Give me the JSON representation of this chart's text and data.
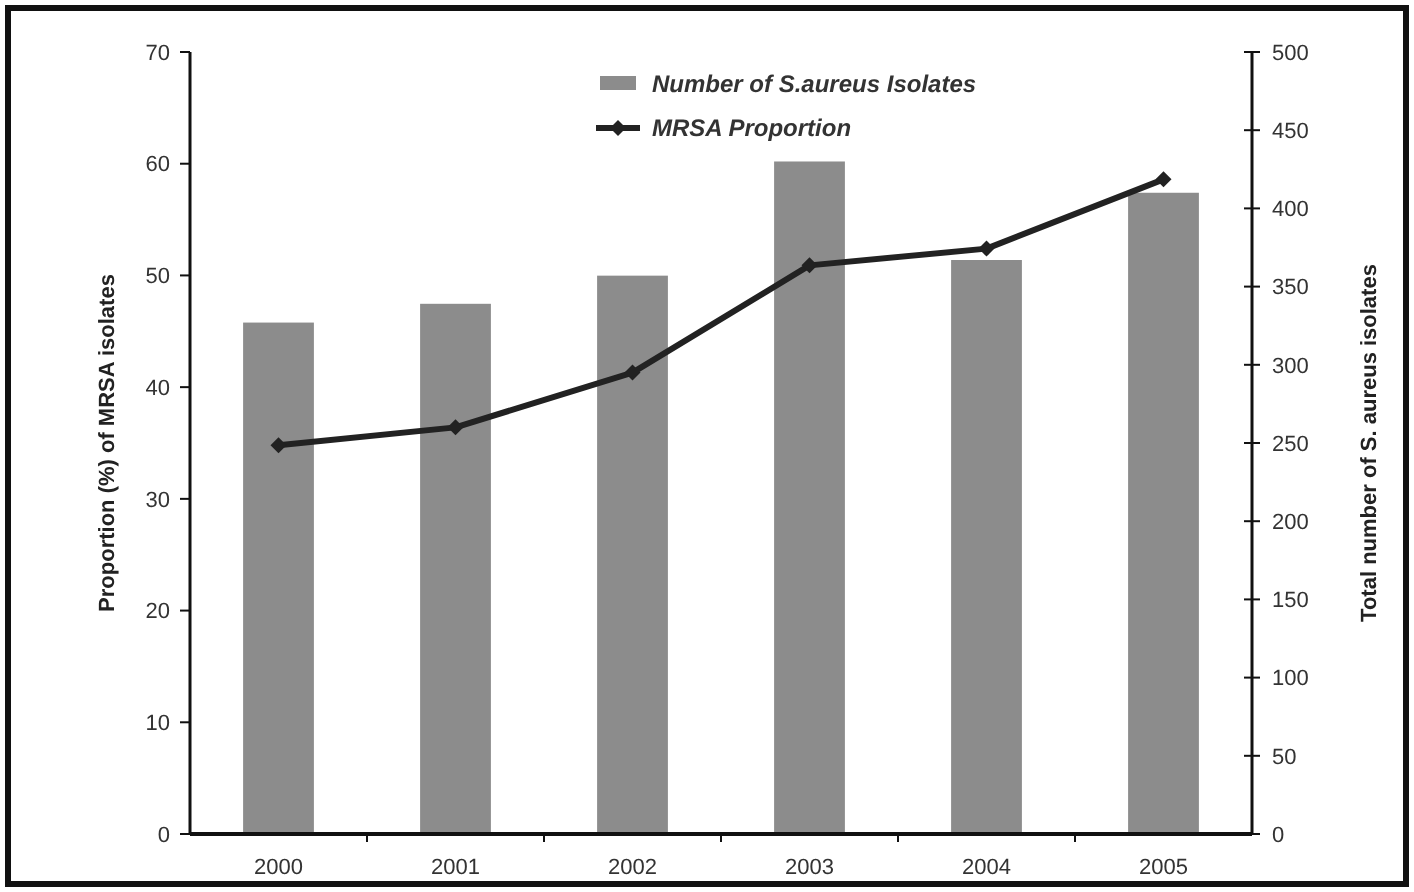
{
  "chart_data": {
    "type": "bar",
    "categories": [
      "2000",
      "2001",
      "2002",
      "2003",
      "2004",
      "2005"
    ],
    "series": [
      {
        "name": "Number of S.aureus Isolates",
        "axis": "y2",
        "color": "#8c8c8c",
        "values": [
          327,
          339,
          357,
          430,
          367,
          410
        ]
      },
      {
        "name": "MRSA Proportion",
        "type": "line",
        "color": "#222222",
        "marker": "diamond",
        "values": [
          34.8,
          36.4,
          41.3,
          50.9,
          52.4,
          58.6
        ]
      }
    ],
    "ylabel": "Proportion (%) of MRSA isolates",
    "y2label": "Total number of S. aureus isolates",
    "ylim": [
      0,
      70
    ],
    "yticks": [
      0,
      10,
      20,
      30,
      40,
      50,
      60,
      70
    ],
    "y2lim": [
      0,
      500
    ],
    "y2ticks": [
      0,
      50,
      100,
      150,
      200,
      250,
      300,
      350,
      400,
      450,
      500
    ],
    "legend": "top",
    "grid": false
  }
}
